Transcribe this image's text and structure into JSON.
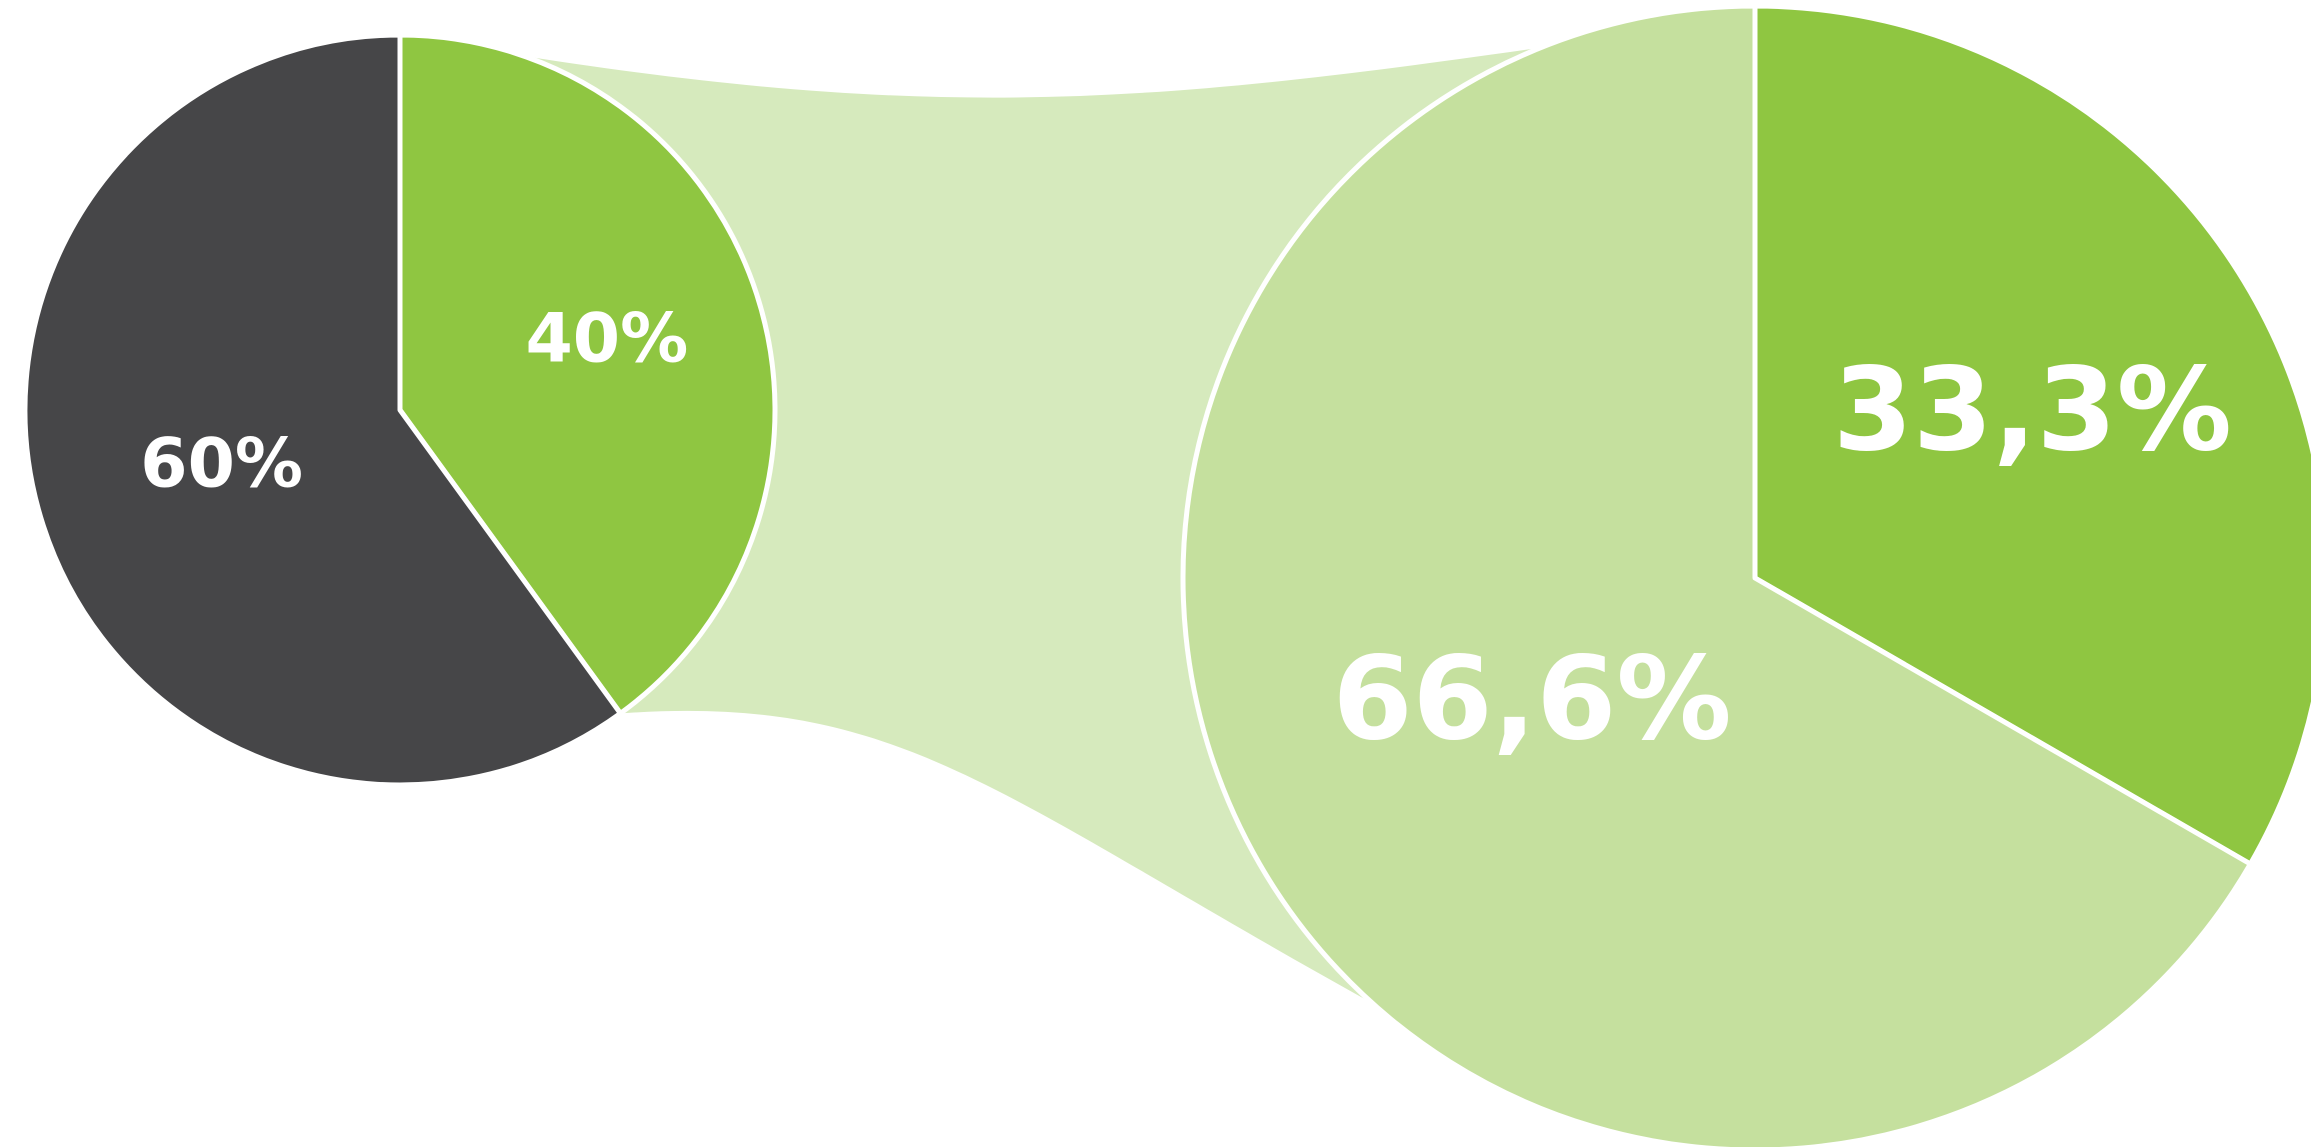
{
  "chart_data": [
    {
      "type": "pie",
      "title": "",
      "slices": [
        {
          "label": "60%",
          "value": 60,
          "color": "#464648"
        },
        {
          "label": "40%",
          "value": 40,
          "color": "#8fc641"
        }
      ],
      "start_angle_deg": 0,
      "direction": "clockwise",
      "exploded_slice_index": 1
    },
    {
      "type": "pie",
      "title": "",
      "slices": [
        {
          "label": "33,3%",
          "value": 33.3,
          "color": "#8fc641"
        },
        {
          "label": "66,6%",
          "value": 66.6,
          "color": "#c5e09e"
        }
      ],
      "start_angle_deg": 0,
      "direction": "clockwise"
    }
  ],
  "connector_color": "#d6eabd",
  "border_color": "#ffffff"
}
